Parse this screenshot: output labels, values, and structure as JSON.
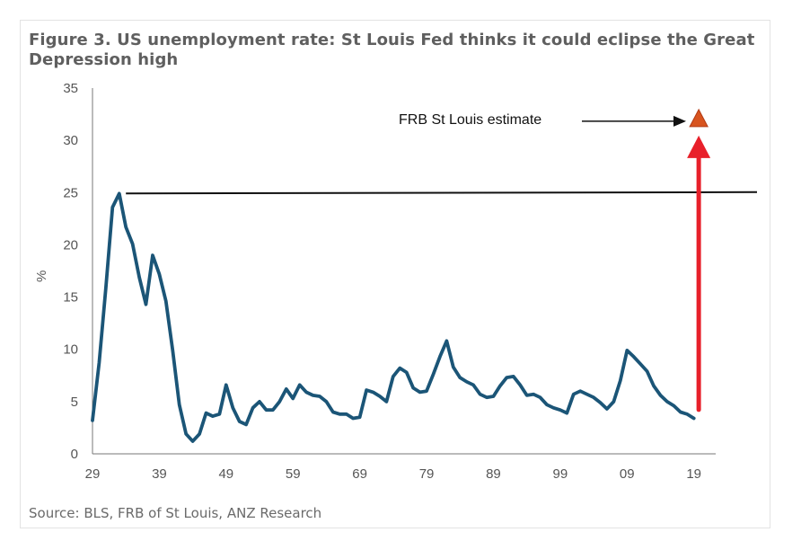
{
  "title": "Figure 3. US unemployment rate: St Louis Fed thinks it could eclipse the Great Depression high",
  "source": "Source: BLS, FRB of St Louis, ANZ Research",
  "colors": {
    "series": "#1b5577",
    "arrow": "#e8202a",
    "marker": "#d8541f",
    "axis": "#777777"
  },
  "chart_data": {
    "type": "line",
    "ylabel": "%",
    "ylim": [
      0,
      35
    ],
    "yticks": [
      0,
      5,
      10,
      15,
      20,
      25,
      30,
      35
    ],
    "xlim": [
      1929,
      2022
    ],
    "xticks": [
      1929,
      1939,
      1949,
      1959,
      1969,
      1979,
      1989,
      1999,
      2009,
      2019
    ],
    "xtick_labels": [
      "29",
      "39",
      "49",
      "59",
      "69",
      "79",
      "89",
      "99",
      "09",
      "19"
    ],
    "grid": false,
    "series": [
      {
        "x": [
          1929,
          1930,
          1931,
          1932,
          1933,
          1934,
          1935,
          1936,
          1937,
          1938,
          1939,
          1940,
          1941,
          1942,
          1943,
          1944,
          1945,
          1946,
          1947,
          1948,
          1949,
          1950,
          1951,
          1952,
          1953,
          1954,
          1955,
          1956,
          1957,
          1958,
          1959,
          1960,
          1961,
          1962,
          1963,
          1964,
          1965,
          1966,
          1967,
          1968,
          1969,
          1970,
          1971,
          1972,
          1973,
          1974,
          1975,
          1976,
          1977,
          1978,
          1979,
          1980,
          1981,
          1982,
          1983,
          1984,
          1985,
          1986,
          1987,
          1988,
          1989,
          1990,
          1991,
          1992,
          1993,
          1994,
          1995,
          1996,
          1997,
          1998,
          1999,
          2000,
          2001,
          2002,
          2003,
          2004,
          2005,
          2006,
          2007,
          2008,
          2009,
          2010,
          2011,
          2012,
          2013,
          2014,
          2015,
          2016,
          2017,
          2018,
          2019
        ],
        "values": [
          3.2,
          8.7,
          15.9,
          23.6,
          24.9,
          21.7,
          20.1,
          16.9,
          14.3,
          19.0,
          17.2,
          14.6,
          9.9,
          4.7,
          1.9,
          1.2,
          1.9,
          3.9,
          3.6,
          3.8,
          6.6,
          4.4,
          3.1,
          2.8,
          4.4,
          5.0,
          4.2,
          4.2,
          5.0,
          6.2,
          5.3,
          6.6,
          5.9,
          5.6,
          5.5,
          5.0,
          4.0,
          3.8,
          3.8,
          3.4,
          3.5,
          6.1,
          5.9,
          5.5,
          5.0,
          7.4,
          8.2,
          7.8,
          6.3,
          5.9,
          6.0,
          7.6,
          9.3,
          10.8,
          8.3,
          7.3,
          6.9,
          6.6,
          5.7,
          5.4,
          5.5,
          6.5,
          7.3,
          7.4,
          6.6,
          5.6,
          5.7,
          5.4,
          4.7,
          4.4,
          4.2,
          3.9,
          5.7,
          6.0,
          5.7,
          5.4,
          4.9,
          4.3,
          5.0,
          7.0,
          9.9,
          9.3,
          8.6,
          7.9,
          6.5,
          5.6,
          5.0,
          4.6,
          4.0,
          3.8,
          3.4
        ]
      }
    ],
    "annotations": {
      "hline_value": 25,
      "estimate_label": "FRB St Louis estimate",
      "estimate_value": 32,
      "estimate_year": 2020,
      "arrow_from_value": 4.4
    }
  }
}
